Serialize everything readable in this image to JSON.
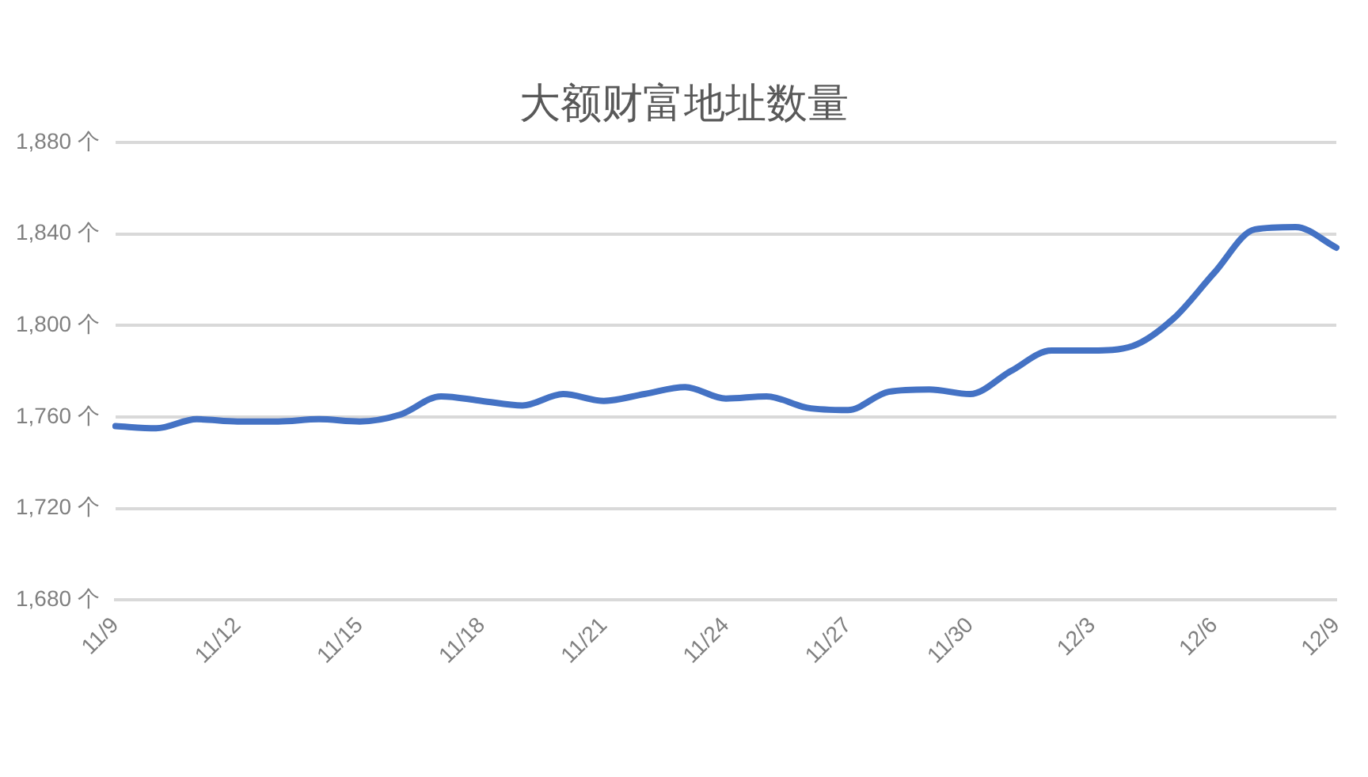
{
  "chart_data": {
    "type": "line",
    "title": "大额财富地址数量",
    "categories": [
      "11/9",
      null,
      null,
      "11/12",
      null,
      null,
      "11/15",
      null,
      null,
      "11/18",
      null,
      null,
      "11/21",
      null,
      null,
      "11/24",
      null,
      null,
      "11/27",
      null,
      null,
      "11/30",
      null,
      null,
      "12/3",
      null,
      null,
      "12/6",
      null,
      null,
      "12/9"
    ],
    "series": [
      {
        "color": "#4472c4",
        "values": [
          1756,
          1755,
          1759,
          1758,
          1758,
          1759,
          1758,
          1761,
          1769,
          1767,
          1765,
          1770,
          1767,
          1770,
          1773,
          1768,
          1769,
          1764,
          1763,
          1771,
          1772,
          1770,
          1780,
          1789,
          1789,
          1791,
          1803,
          1823,
          1842,
          1843,
          1834
        ]
      }
    ],
    "ylim": [
      1680,
      1880
    ],
    "yticks": [
      {
        "value": 1680,
        "label": "1,680 个"
      },
      {
        "value": 1720,
        "label": "1,720 个"
      },
      {
        "value": 1760,
        "label": "1,760 个"
      },
      {
        "value": 1800,
        "label": "1,800 个"
      },
      {
        "value": 1840,
        "label": "1,840 个"
      },
      {
        "value": 1880,
        "label": "1,880 个"
      }
    ],
    "grid": "y",
    "legend": false,
    "marker": "none",
    "line_style": "solid"
  }
}
